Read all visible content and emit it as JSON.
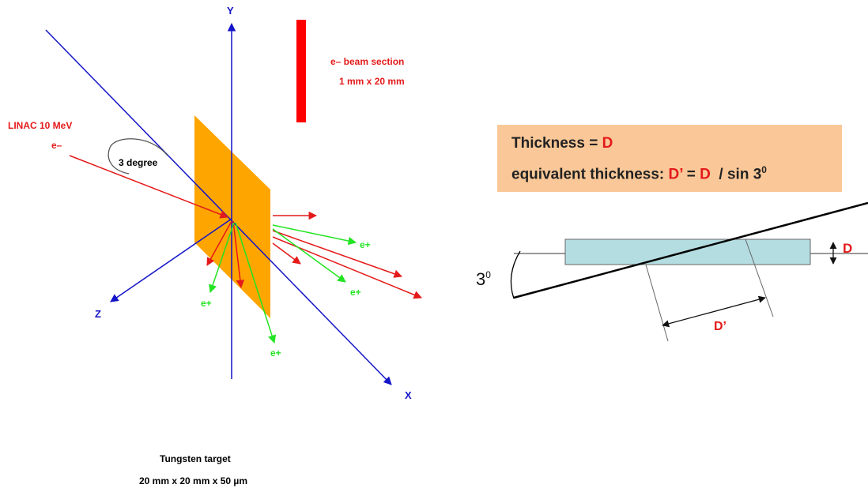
{
  "left_diagram": {
    "axis_y": "Y",
    "axis_z": "Z",
    "axis_x": "X",
    "beam_section_title": "e– beam section",
    "beam_section_size": "1 mm x 20 mm",
    "linac_label": "LINAC  10 MeV",
    "electron_label": "e–",
    "angle_label": "3 degree",
    "positron_labels": [
      "e+",
      "e+",
      "e+",
      "e+"
    ],
    "target_title": "Tungsten target",
    "target_size": "20 mm x 20 mm x 50 µm"
  },
  "right_diagram": {
    "thickness_prefix": "Thickness = ",
    "thickness_symbol": "D",
    "equiv_prefix": "equivalent thickness: ",
    "equiv_dprime": "D’",
    "equiv_equals": " = ",
    "equiv_d": "D",
    "equiv_suffix": "  / sin 3",
    "equiv_exp": "0",
    "angle_base": "3",
    "angle_exp": "0",
    "d_label": "D",
    "dprime_label": "D’"
  },
  "colors": {
    "axis_blue": "#1414c8",
    "beam_red": "#e41a1a",
    "positron_green": "#22e422",
    "target_orange": "#ffa500",
    "formula_box": "#fac898",
    "slab_fill": "#b4dde2"
  }
}
